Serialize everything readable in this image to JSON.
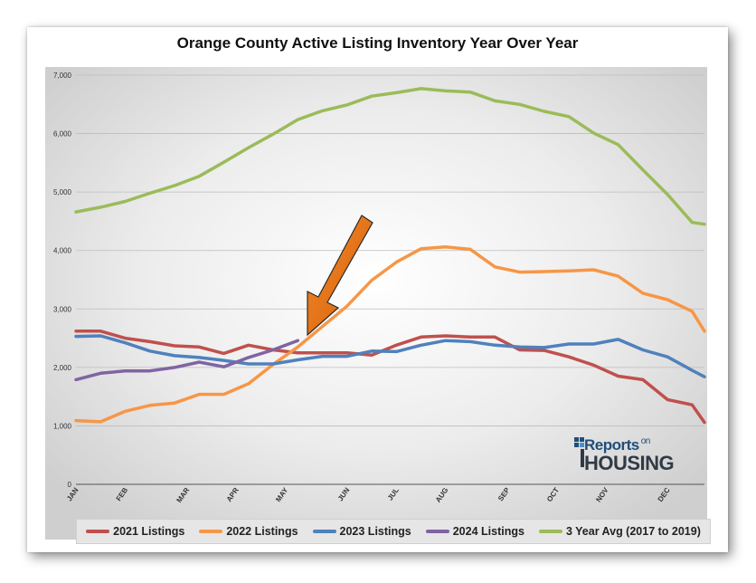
{
  "chart_data": {
    "type": "line",
    "title": "Orange County Active Listing Inventory Year Over Year",
    "xlabel": "",
    "ylabel": "",
    "ylim": [
      0,
      7000
    ],
    "yticks": [
      0,
      1000,
      2000,
      3000,
      4000,
      5000,
      6000,
      7000
    ],
    "ytick_labels": [
      "0",
      "1,000",
      "2,000",
      "3,000",
      "4,000",
      "5,000",
      "6,000",
      "7,000"
    ],
    "grid": "horizontal",
    "legend_position": "bottom",
    "x_points": 52,
    "month_labels": [
      {
        "label": "JAN",
        "index": 0
      },
      {
        "label": "FEB",
        "index": 4
      },
      {
        "label": "MAR",
        "index": 9
      },
      {
        "label": "APR",
        "index": 13
      },
      {
        "label": "MAY",
        "index": 17
      },
      {
        "label": "JUN",
        "index": 22
      },
      {
        "label": "JUL",
        "index": 26
      },
      {
        "label": "AUG",
        "index": 30
      },
      {
        "label": "SEP",
        "index": 35
      },
      {
        "label": "OCT",
        "index": 39
      },
      {
        "label": "NOV",
        "index": 43
      },
      {
        "label": "DEC",
        "index": 48
      }
    ],
    "series": [
      {
        "name": "2021 Listings",
        "color": "#c0504d",
        "x": [
          0,
          2,
          4,
          6,
          8,
          10,
          12,
          14,
          16,
          18,
          20,
          22,
          24,
          26,
          28,
          30,
          32,
          34,
          36,
          38,
          40,
          42,
          44,
          46,
          48,
          50,
          51
        ],
        "values": [
          2620,
          2620,
          2500,
          2440,
          2370,
          2350,
          2240,
          2380,
          2300,
          2250,
          2250,
          2250,
          2210,
          2380,
          2520,
          2540,
          2520,
          2520,
          2300,
          2290,
          2180,
          2040,
          1850,
          1790,
          1450,
          1360,
          1060
        ]
      },
      {
        "name": "2022 Listings",
        "color": "#f79646",
        "x": [
          0,
          2,
          4,
          6,
          8,
          10,
          12,
          14,
          16,
          18,
          20,
          22,
          24,
          26,
          28,
          30,
          32,
          34,
          36,
          38,
          40,
          42,
          44,
          46,
          48,
          50,
          51
        ],
        "values": [
          1090,
          1070,
          1250,
          1350,
          1390,
          1540,
          1540,
          1720,
          2050,
          2350,
          2700,
          3050,
          3490,
          3800,
          4030,
          4060,
          4020,
          3720,
          3630,
          3640,
          3650,
          3670,
          3560,
          3270,
          3160,
          2960,
          2620
        ]
      },
      {
        "name": "2023 Listings",
        "color": "#4f81bd",
        "x": [
          0,
          2,
          4,
          6,
          8,
          10,
          12,
          14,
          16,
          18,
          20,
          22,
          24,
          26,
          28,
          30,
          32,
          34,
          36,
          38,
          40,
          42,
          44,
          46,
          48,
          50,
          51
        ],
        "values": [
          2530,
          2540,
          2420,
          2280,
          2200,
          2170,
          2120,
          2060,
          2060,
          2130,
          2190,
          2190,
          2280,
          2270,
          2380,
          2460,
          2440,
          2380,
          2350,
          2340,
          2400,
          2400,
          2480,
          2300,
          2180,
          1950,
          1840
        ]
      },
      {
        "name": "2024 Listings",
        "color": "#8064a2",
        "x": [
          0,
          2,
          4,
          6,
          8,
          10,
          12,
          14,
          16,
          18
        ],
        "values": [
          1790,
          1900,
          1940,
          1940,
          2000,
          2090,
          2010,
          2170,
          2300,
          2460
        ]
      },
      {
        "name": "3 Year Avg (2017 to 2019)",
        "color": "#9bbb59",
        "x": [
          0,
          2,
          4,
          6,
          8,
          10,
          12,
          14,
          16,
          18,
          20,
          22,
          24,
          26,
          28,
          30,
          32,
          34,
          36,
          38,
          40,
          42,
          44,
          46,
          48,
          50,
          51
        ],
        "values": [
          4660,
          4740,
          4840,
          4980,
          5110,
          5270,
          5510,
          5760,
          5990,
          6240,
          6390,
          6490,
          6640,
          6700,
          6770,
          6730,
          6710,
          6560,
          6500,
          6380,
          6290,
          6010,
          5810,
          5380,
          4960,
          4480,
          4450
        ]
      }
    ]
  },
  "logo": {
    "top": "Reports",
    "on": "on",
    "bottom": "HOUSING"
  }
}
